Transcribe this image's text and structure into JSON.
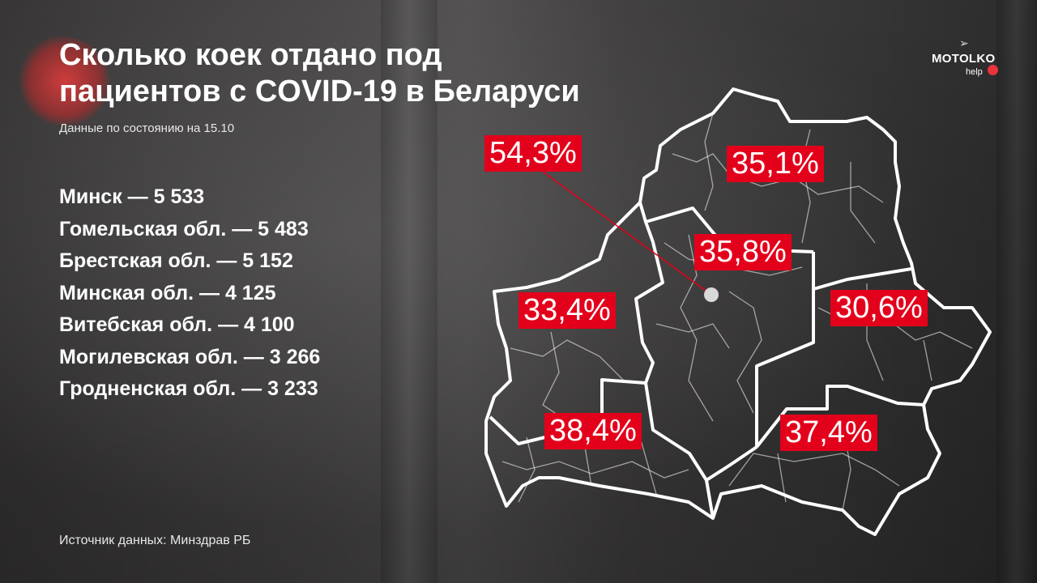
{
  "title": "Сколько коек отдано под пациентов с COVID-19 в Беларуси",
  "title_lines": [
    "Сколько коек отдано под",
    "пациентов с COVID-19 в Беларуси"
  ],
  "subtitle": "Данные по состоянию на 15.10",
  "beds": [
    "Минск — 5 533",
    "Гомельская обл. — 5 483",
    "Брестская обл. — 5 152",
    "Минская обл. — 4 125",
    "Витебская обл. — 4 100",
    "Могилевская обл. — 3 266",
    "Гродненская обл. — 3 233"
  ],
  "source": "Источник данных: Минздрав РБ",
  "logo": {
    "name": "MOTOLKO",
    "suffix": "help",
    "icon": "paper-plane-icon"
  },
  "colors": {
    "accent": "#e3001b",
    "outline": "#ffffff"
  },
  "map_labels": {
    "minsk_city": "54,3%",
    "vitebsk": "35,1%",
    "minsk_region": "35,8%",
    "grodno": "33,4%",
    "mogilev": "30,6%",
    "brest": "38,4%",
    "gomel": "37,4%"
  }
}
